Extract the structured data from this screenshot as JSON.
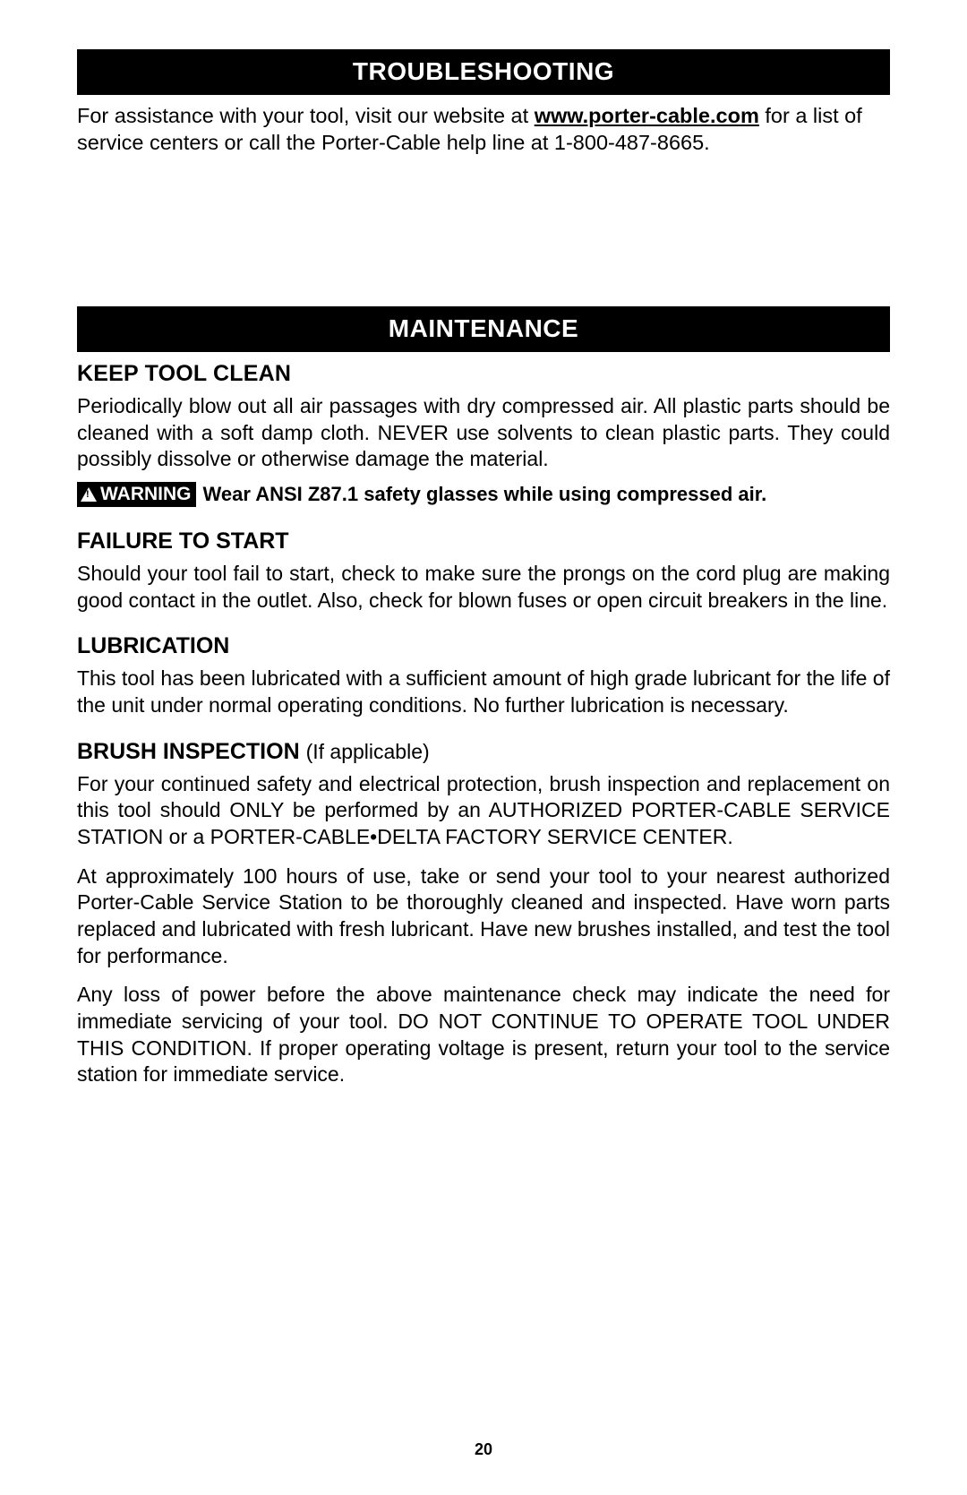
{
  "troubleshooting": {
    "header": "TROUBLESHOOTING",
    "text_before_link": "For assistance with your tool, visit our website at ",
    "link_text": "www.porter-cable.com",
    "text_after_link": " for a list of service centers or call the Porter-Cable help line at 1-800-487-8665."
  },
  "maintenance": {
    "header": "MAINTENANCE",
    "keep_clean": {
      "heading": "KEEP TOOL CLEAN",
      "body": "Periodically blow out all air passages with dry compressed air. All plastic parts should be cleaned with a soft damp cloth. NEVER use solvents to clean plastic parts. They could possibly dissolve or otherwise damage the material.",
      "warning_label": "WARNING",
      "warning_text": "Wear ANSI Z87.1 safety glasses while using compressed air."
    },
    "failure_to_start": {
      "heading": "FAILURE TO START",
      "body": "Should your tool fail to start, check to make sure the prongs on the cord plug are making good contact in the outlet. Also, check for blown fuses or open circuit breakers in the line."
    },
    "lubrication": {
      "heading": "LUBRICATION",
      "body": "This tool has been lubricated with a sufficient amount of high grade lubricant for the life of the unit under normal operating conditions. No further lubrication is necessary."
    },
    "brush_inspection": {
      "heading": "BRUSH INSPECTION ",
      "heading_sub": "(If applicable)",
      "body1": "For your continued safety and electrical protection, brush inspection and replacement on this tool should ONLY be performed by an AUTHORIZED PORTER-CABLE SERVICE STATION or a PORTER-CABLE•DELTA FACTORY SERVICE CENTER.",
      "body2": "At approximately 100 hours of use, take or send your tool to your nearest authorized Porter-Cable Service Station to be thoroughly cleaned and inspected. Have worn parts replaced and lubricated with fresh lubricant. Have new brushes installed, and test the tool for performance.",
      "body3": "Any loss of power before the above maintenance check may indicate the need for immediate servicing of your tool. DO NOT CONTINUE TO OPERATE TOOL UNDER THIS CONDITION. If proper operating voltage is present, return your tool to the service station for immediate service."
    }
  },
  "page_number": "20",
  "colors": {
    "text": "#000000",
    "background": "#ffffff",
    "header_bg": "#000000",
    "header_fg": "#ffffff"
  },
  "typography": {
    "body_fontsize": 23,
    "header_fontsize": 28,
    "subhead_fontsize": 25,
    "pagenum_fontsize": 18
  }
}
